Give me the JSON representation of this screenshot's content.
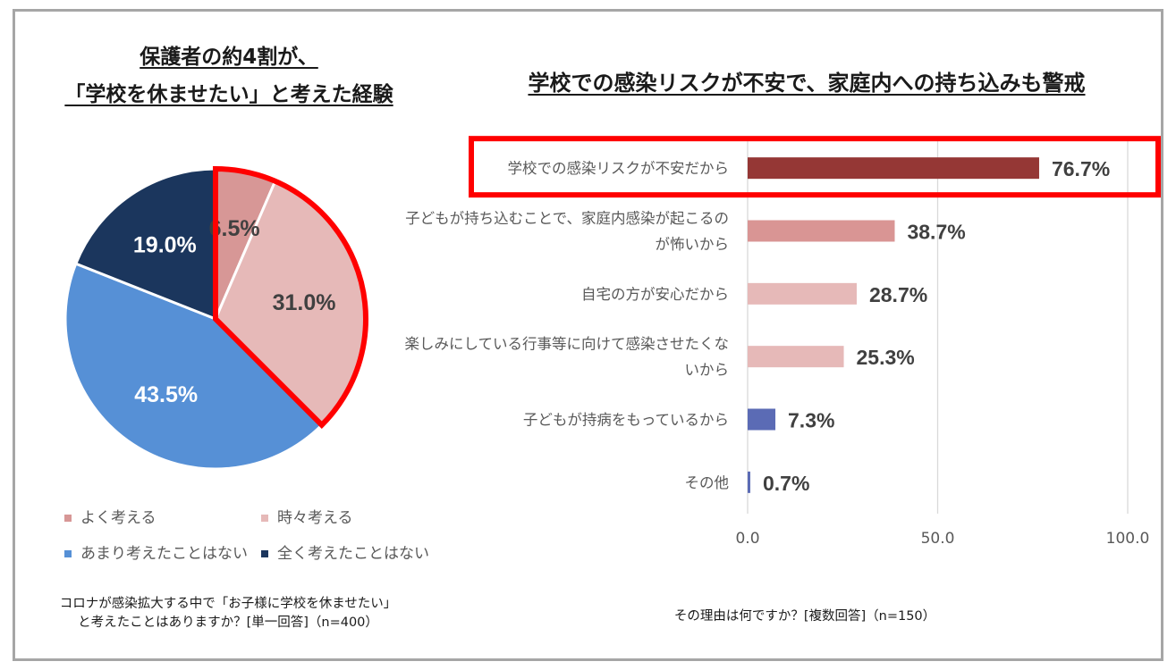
{
  "pie_section": {
    "title_line1": "保護者の約4割が、",
    "title_line2": "「学校を休ませたい」と考えた経験",
    "question_line1": "コロナが感染拡大する中で「お子様に学校を休ませたい」",
    "question_line2": "と考えたことはありますか？[単一回答]（n=400）"
  },
  "bar_section": {
    "title": "学校での感染リスクが不安で、家庭内への持ち込みも警戒",
    "question": "その理由は何ですか？[複数回答]（n=150）"
  },
  "chart_data": [
    {
      "type": "pie",
      "start_angle_deg": 0,
      "direction": "clockwise",
      "slices": [
        {
          "label": "よく考える",
          "value": 6.5,
          "display": "6.5%",
          "color": "#d79796",
          "label_color": "#404040"
        },
        {
          "label": "時々考える",
          "value": 31.0,
          "display": "31.0%",
          "color": "#e6b9b8",
          "label_color": "#404040"
        },
        {
          "label": "あまり考えたことはない",
          "value": 43.5,
          "display": "43.5%",
          "color": "#5690d6",
          "label_color": "#ffffff"
        },
        {
          "label": "全く考えたことはない",
          "value": 19.0,
          "display": "19.0%",
          "color": "#1b365d",
          "label_color": "#ffffff"
        }
      ],
      "highlighted_slices": [
        "よく考える",
        "時々考える"
      ],
      "highlight_color": "#ff0000"
    },
    {
      "type": "bar",
      "orientation": "horizontal",
      "categories": [
        [
          "学校での感染リスクが不安だから"
        ],
        [
          "子どもが持ち込むことで、家庭内感染が起こるの",
          "が怖いから"
        ],
        [
          "自宅の方が安心だから"
        ],
        [
          "楽しみにしている行事等に向けて感染させたくな",
          "いから"
        ],
        [
          "子どもが持病をもっているから"
        ],
        [
          "その他"
        ]
      ],
      "values": [
        76.7,
        38.7,
        28.7,
        25.3,
        7.3,
        0.7
      ],
      "labels": [
        "76.7%",
        "38.7%",
        "28.7%",
        "25.3%",
        "7.3%",
        "0.7%"
      ],
      "colors": [
        "#953735",
        "#d99594",
        "#e6b9b8",
        "#e6b9b8",
        "#5b6bb5",
        "#5b6bb5"
      ],
      "xlim": [
        0,
        100
      ],
      "xticks": [
        "0.0",
        "50.0",
        "100.0"
      ],
      "xtick_values": [
        0,
        50,
        100
      ],
      "grid": true,
      "highlighted_category": "学校での感染リスクが不安だから",
      "highlight_color": "#ff0000"
    }
  ]
}
